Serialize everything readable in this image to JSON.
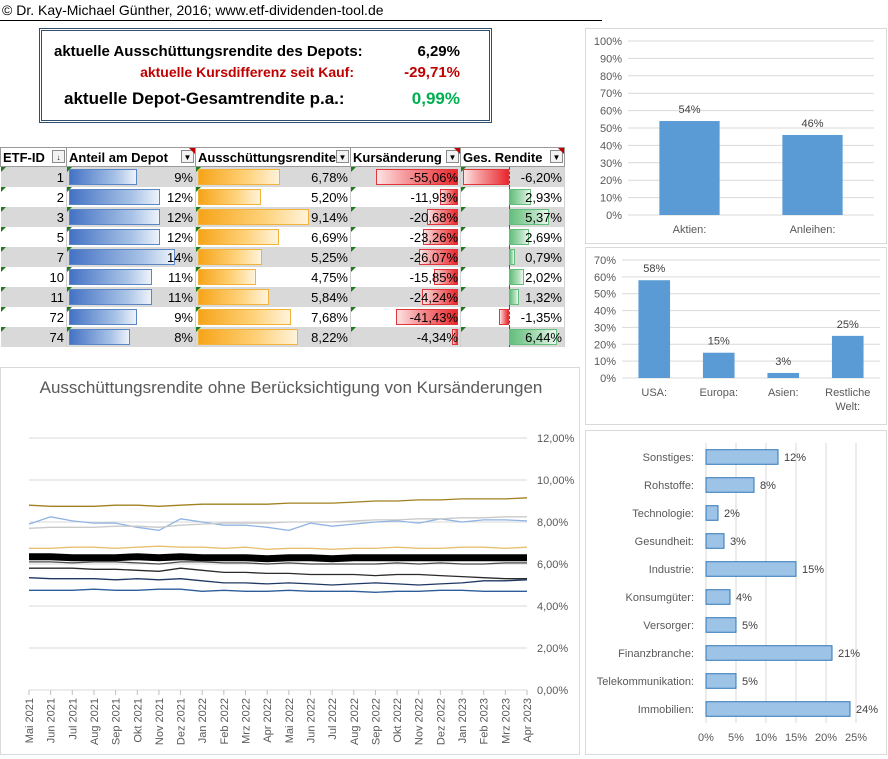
{
  "header": {
    "copyright": "© Dr. Kay-Michael Günther, 2016; www.etf-dividenden-tool.de"
  },
  "summary": {
    "dividend_yield_label": "aktuelle Ausschüttungsrendite des Depots:",
    "dividend_yield_value": "6,29%",
    "price_diff_label": "aktuelle Kursdifferenz seit Kauf:",
    "price_diff_value": "-29,71%",
    "total_return_label": "aktuelle Depot-Gesamtrendite p.a.:",
    "total_return_value": "0,99%",
    "colors": {
      "negative": "#c00000",
      "positive": "#00b050"
    }
  },
  "table": {
    "columns": [
      "ETF-ID",
      "Anteil am Depot",
      "Ausschüttungsrendite",
      "Kursänderung",
      "Ges. Rendite"
    ],
    "rows": [
      {
        "id": "1",
        "share": "9%",
        "share_pct": 9,
        "yield": "6,78%",
        "yield_pct": 6.78,
        "change": "-55,06%",
        "change_pct": -55.06,
        "total": "-6,20%",
        "total_pct": -6.2
      },
      {
        "id": "2",
        "share": "12%",
        "share_pct": 12,
        "yield": "5,20%",
        "yield_pct": 5.2,
        "change": "-11,93%",
        "change_pct": -11.93,
        "total": "2,93%",
        "total_pct": 2.93
      },
      {
        "id": "3",
        "share": "12%",
        "share_pct": 12,
        "yield": "9,14%",
        "yield_pct": 9.14,
        "change": "-20,68%",
        "change_pct": -20.68,
        "total": "5,37%",
        "total_pct": 5.37
      },
      {
        "id": "5",
        "share": "12%",
        "share_pct": 12,
        "yield": "6,69%",
        "yield_pct": 6.69,
        "change": "-23,26%",
        "change_pct": -23.26,
        "total": "2,69%",
        "total_pct": 2.69
      },
      {
        "id": "7",
        "share": "14%",
        "share_pct": 14,
        "yield": "5,25%",
        "yield_pct": 5.25,
        "change": "-26,07%",
        "change_pct": -26.07,
        "total": "0,79%",
        "total_pct": 0.79
      },
      {
        "id": "10",
        "share": "11%",
        "share_pct": 11,
        "yield": "4,75%",
        "yield_pct": 4.75,
        "change": "-15,85%",
        "change_pct": -15.85,
        "total": "2,02%",
        "total_pct": 2.02
      },
      {
        "id": "11",
        "share": "11%",
        "share_pct": 11,
        "yield": "5,84%",
        "yield_pct": 5.84,
        "change": "-24,24%",
        "change_pct": -24.24,
        "total": "1,32%",
        "total_pct": 1.32
      },
      {
        "id": "72",
        "share": "9%",
        "share_pct": 9,
        "yield": "7,68%",
        "yield_pct": 7.68,
        "change": "-41,43%",
        "change_pct": -41.43,
        "total": "-1,35%",
        "total_pct": -1.35
      },
      {
        "id": "74",
        "share": "8%",
        "share_pct": 8,
        "yield": "8,22%",
        "yield_pct": 8.22,
        "change": "-4,34%",
        "change_pct": -4.34,
        "total": "6,44%",
        "total_pct": 6.44
      }
    ]
  },
  "chart_data": [
    {
      "type": "bar",
      "categories": [
        "Aktien:",
        "Anleihen:"
      ],
      "values": [
        54,
        46
      ],
      "data_labels": [
        "54%",
        "46%"
      ],
      "ylim": [
        0,
        100
      ],
      "yticks": [
        "0%",
        "10%",
        "20%",
        "30%",
        "40%",
        "50%",
        "60%",
        "70%",
        "80%",
        "90%",
        "100%"
      ],
      "color": "#5b9bd5"
    },
    {
      "type": "bar",
      "categories": [
        "USA:",
        "Europa:",
        "Asien:",
        "Restliche Welt:"
      ],
      "values": [
        58,
        15,
        3,
        25
      ],
      "data_labels": [
        "58%",
        "15%",
        "3%",
        "25%"
      ],
      "ylim": [
        0,
        70
      ],
      "yticks": [
        "0%",
        "10%",
        "20%",
        "30%",
        "40%",
        "50%",
        "60%",
        "70%"
      ],
      "color": "#5b9bd5"
    },
    {
      "type": "bar",
      "orientation": "horizontal",
      "categories": [
        "Sonstiges:",
        "Rohstoffe:",
        "Technologie:",
        "Gesundheit:",
        "Industrie:",
        "Konsumgüter:",
        "Versorger:",
        "Finanzbranche:",
        "Telekommunikation:",
        "Immobilien:"
      ],
      "values": [
        12,
        8,
        2,
        3,
        15,
        4,
        5,
        21,
        5,
        24
      ],
      "data_labels": [
        "12%",
        "8%",
        "2%",
        "3%",
        "15%",
        "4%",
        "5%",
        "21%",
        "5%",
        "24%"
      ],
      "xlim": [
        0,
        25
      ],
      "xticks": [
        "0%",
        "5%",
        "10%",
        "15%",
        "20%",
        "25%"
      ],
      "color": "#9dc3e6"
    },
    {
      "type": "line",
      "title": "Ausschüttungsrendite ohne Berücksichtigung von Kursänderungen",
      "x": [
        "Mai 2021",
        "Jun 2021",
        "Jul 2021",
        "Aug 2021",
        "Sep 2021",
        "Okt 2021",
        "Nov 2021",
        "Dez 2021",
        "Jan 2022",
        "Feb 2022",
        "Mrz 2022",
        "Apr 2022",
        "Mai 2022",
        "Jun 2022",
        "Jul 2022",
        "Aug 2022",
        "Sep 2022",
        "Okt 2022",
        "Nov 2022",
        "Dez 2022",
        "Jan 2023",
        "Feb 2023",
        "Mrz 2023",
        "Apr 2023"
      ],
      "ylim": [
        0,
        12
      ],
      "yticks": [
        "0,00%",
        "2,00%",
        "4,00%",
        "6,00%",
        "8,00%",
        "10,00%",
        "12,00%"
      ],
      "series": [
        {
          "color": "#a08020",
          "width": 1.3,
          "values": [
            8.8,
            8.75,
            8.75,
            8.75,
            8.8,
            8.8,
            8.75,
            8.8,
            8.85,
            8.85,
            8.85,
            8.85,
            8.9,
            8.9,
            8.9,
            8.95,
            9.0,
            9.0,
            9.05,
            9.05,
            9.1,
            9.1,
            9.1,
            9.15
          ]
        },
        {
          "color": "#8fb4e3",
          "width": 1.3,
          "values": [
            7.9,
            8.25,
            8.05,
            7.95,
            7.95,
            7.75,
            7.6,
            8.15,
            8.0,
            7.85,
            7.85,
            7.75,
            7.6,
            7.95,
            7.8,
            7.9,
            8.0,
            8.05,
            7.95,
            8.15,
            8.0,
            8.1,
            8.1,
            8.05
          ]
        },
        {
          "color": "#c9c9c9",
          "width": 1.3,
          "values": [
            7.7,
            7.75,
            7.75,
            7.75,
            7.8,
            7.8,
            7.75,
            7.85,
            7.9,
            7.95,
            7.95,
            7.95,
            8.0,
            8.0,
            8.0,
            8.05,
            8.1,
            8.1,
            8.15,
            8.15,
            8.2,
            8.2,
            8.25,
            8.25
          ]
        },
        {
          "color": "#e8c070",
          "width": 1.3,
          "values": [
            6.75,
            6.75,
            6.8,
            6.8,
            6.75,
            6.8,
            6.85,
            6.8,
            6.8,
            6.75,
            6.8,
            6.7,
            6.75,
            6.75,
            6.7,
            6.75,
            6.75,
            6.8,
            6.75,
            6.75,
            6.8,
            6.8,
            6.75,
            6.8
          ]
        },
        {
          "color": "#000000",
          "width": 7,
          "values": [
            6.35,
            6.35,
            6.3,
            6.3,
            6.3,
            6.35,
            6.3,
            6.35,
            6.3,
            6.3,
            6.3,
            6.25,
            6.3,
            6.3,
            6.25,
            6.3,
            6.3,
            6.3,
            6.3,
            6.3,
            6.3,
            6.3,
            6.3,
            6.3
          ]
        },
        {
          "color": "#4a4a4a",
          "width": 1.3,
          "values": [
            6.1,
            6.1,
            6.05,
            6.1,
            6.1,
            6.05,
            6.0,
            6.1,
            6.1,
            6.05,
            6.05,
            6.0,
            6.05,
            6.0,
            6.0,
            6.0,
            6.0,
            6.05,
            6.0,
            6.05,
            6.0,
            6.0,
            6.05,
            6.05
          ]
        },
        {
          "color": "#2b2b2b",
          "width": 1.3,
          "values": [
            5.8,
            5.8,
            5.8,
            5.75,
            5.75,
            5.7,
            5.65,
            5.8,
            5.7,
            5.6,
            5.6,
            5.55,
            5.55,
            5.5,
            5.5,
            5.5,
            5.45,
            5.5,
            5.5,
            5.45,
            5.4,
            5.35,
            5.3,
            5.3
          ]
        },
        {
          "color": "#1f3864",
          "width": 1.3,
          "values": [
            5.35,
            5.3,
            5.3,
            5.3,
            5.25,
            5.3,
            5.25,
            5.3,
            5.2,
            5.1,
            5.1,
            5.05,
            5.1,
            5.05,
            5.0,
            5.05,
            5.1,
            5.05,
            5.0,
            5.05,
            5.1,
            5.2,
            5.2,
            5.25
          ]
        },
        {
          "color": "#2e5c9a",
          "width": 1.3,
          "values": [
            4.75,
            4.75,
            4.75,
            4.8,
            4.75,
            4.75,
            4.8,
            4.8,
            4.7,
            4.75,
            4.7,
            4.7,
            4.75,
            4.7,
            4.7,
            4.7,
            4.65,
            4.7,
            4.7,
            4.75,
            4.75,
            4.7,
            4.7,
            4.7
          ]
        }
      ]
    }
  ]
}
